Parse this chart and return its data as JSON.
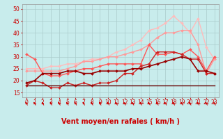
{
  "xlabel": "Vent moyen/en rafales ( km/h )",
  "background_color": "#c8ecec",
  "grid_color": "#aacccc",
  "x_values": [
    0,
    1,
    2,
    3,
    4,
    5,
    6,
    7,
    8,
    9,
    10,
    11,
    12,
    13,
    14,
    15,
    16,
    17,
    18,
    19,
    20,
    21,
    22,
    23
  ],
  "ylim": [
    13,
    52
  ],
  "xlim": [
    -0.5,
    23.5
  ],
  "yticks": [
    15,
    20,
    25,
    30,
    35,
    40,
    45,
    50
  ],
  "series": [
    {
      "color": "#ffbbbb",
      "linewidth": 1.0,
      "marker": "D",
      "markersize": 2.0,
      "data": [
        25,
        25,
        25,
        26,
        26,
        27,
        27,
        28,
        29,
        29,
        30,
        32,
        33,
        35,
        37,
        41,
        42,
        44,
        47,
        44,
        40,
        46,
        34,
        29
      ]
    },
    {
      "color": "#ff9999",
      "linewidth": 1.0,
      "marker": "D",
      "markersize": 2.0,
      "data": [
        24,
        24,
        24,
        24,
        24,
        25,
        26,
        28,
        28,
        29,
        30,
        30,
        31,
        32,
        33,
        35,
        38,
        40,
        40,
        41,
        41,
        35,
        23,
        29
      ]
    },
    {
      "color": "#ff5555",
      "linewidth": 1.0,
      "marker": "D",
      "markersize": 2.0,
      "data": [
        31,
        29,
        23,
        22,
        22,
        23,
        24,
        25,
        25,
        26,
        27,
        27,
        27,
        27,
        27,
        35,
        31,
        31,
        32,
        31,
        33,
        30,
        24,
        30
      ]
    },
    {
      "color": "#cc2222",
      "linewidth": 1.0,
      "marker": "D",
      "markersize": 2.0,
      "data": [
        18,
        20,
        19,
        17,
        17,
        19,
        18,
        19,
        18,
        19,
        19,
        20,
        23,
        23,
        26,
        27,
        32,
        32,
        32,
        31,
        29,
        29,
        23,
        23
      ]
    },
    {
      "color": "#990000",
      "linewidth": 1.2,
      "marker": "D",
      "markersize": 2.0,
      "data": [
        19,
        20,
        23,
        23,
        23,
        24,
        24,
        23,
        23,
        24,
        24,
        24,
        24,
        25,
        25,
        26,
        27,
        28,
        29,
        30,
        29,
        24,
        24,
        23
      ]
    },
    {
      "color": "#660000",
      "linewidth": 1.0,
      "marker": null,
      "markersize": 0,
      "data": [
        18,
        18,
        18,
        18,
        18,
        18,
        18,
        18,
        18,
        18,
        18,
        18,
        18,
        18,
        18,
        18,
        18,
        18,
        18,
        18,
        18,
        18,
        18,
        18
      ]
    }
  ],
  "arrow_color": "#cc0000",
  "xlabel_color": "#cc0000",
  "xlabel_fontsize": 7,
  "tick_color": "#cc0000",
  "tick_fontsize": 5.5
}
